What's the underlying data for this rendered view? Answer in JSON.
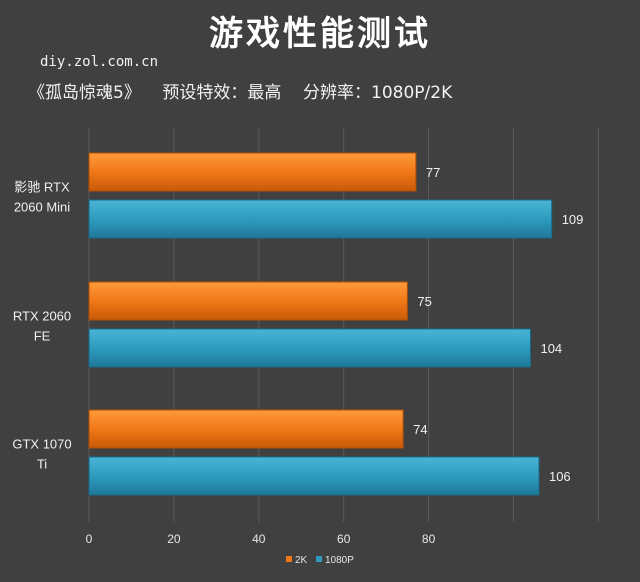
{
  "header": {
    "title": "游戏性能测试",
    "site": "diy.zol.com.cn",
    "subtitle": "《孤岛惊魂5》    预设特效：最高    分辨率：1080P/2K"
  },
  "colors": {
    "2K": "#f07818",
    "1080P": "#2e9cbf",
    "background": "#404040",
    "grid": "#5a5a5a"
  },
  "chart_data": {
    "type": "bar",
    "orientation": "horizontal",
    "categories": [
      [
        "影驰 RTX",
        "2060 Mini"
      ],
      [
        "RTX 2060",
        "FE"
      ],
      [
        "GTX 1070",
        "Ti"
      ]
    ],
    "series": [
      {
        "name": "2K",
        "values": [
          77,
          75,
          74
        ]
      },
      {
        "name": "1080P",
        "values": [
          109,
          104,
          106
        ]
      }
    ],
    "xlim": [
      0,
      120
    ],
    "xticks": [
      0,
      20,
      40,
      60,
      80
    ],
    "grid": true,
    "legend_position": "bottom"
  }
}
